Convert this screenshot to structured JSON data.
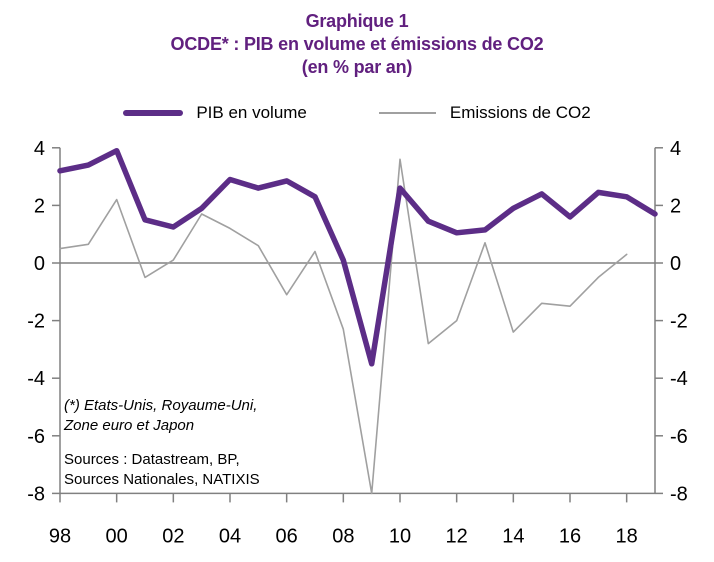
{
  "title": {
    "line1": "Graphique 1",
    "line2": "OCDE* : PIB en volume et émissions de CO2",
    "line3": "(en % par an)"
  },
  "legend": {
    "pib_label": "PIB en volume",
    "co2_label": "Emissions de CO2"
  },
  "annotation": {
    "footnote_line1": "(*) Etats-Unis, Royaume-Uni,",
    "footnote_line2": "Zone euro et Japon",
    "sources_line1": "Sources : Datastream, BP,",
    "sources_line2": "Sources Nationales, NATIXIS"
  },
  "colors": {
    "title": "#61207F",
    "pib_line": "#5C2D87",
    "co2_line": "#A0A0A0",
    "axis": "#808080",
    "text": "#000000"
  },
  "chart_data": {
    "type": "line",
    "x": [
      1998,
      1999,
      2000,
      2001,
      2002,
      2003,
      2004,
      2005,
      2006,
      2007,
      2008,
      2009,
      2010,
      2011,
      2012,
      2013,
      2014,
      2015,
      2016,
      2017,
      2018,
      2019
    ],
    "series": [
      {
        "name": "PIB en volume",
        "color": "#5C2D87",
        "stroke_width": 5.5,
        "values": [
          3.2,
          3.4,
          3.9,
          1.5,
          1.25,
          1.9,
          2.9,
          2.6,
          2.85,
          2.3,
          0.1,
          -3.5,
          2.6,
          1.45,
          1.05,
          1.15,
          1.9,
          2.4,
          1.6,
          2.45,
          2.3,
          1.7
        ]
      },
      {
        "name": "Emissions de CO2",
        "color": "#A0A0A0",
        "stroke_width": 1.6,
        "values": [
          0.5,
          0.65,
          2.2,
          -0.5,
          0.1,
          1.7,
          1.2,
          0.6,
          -1.1,
          0.4,
          -2.3,
          -8.0,
          3.6,
          -2.8,
          -2.0,
          0.7,
          -2.4,
          -1.4,
          -1.5,
          -0.5,
          0.3,
          null
        ]
      }
    ],
    "title": "OCDE* : PIB en volume et émissions de CO2 (en % par an)",
    "xlabel": "",
    "ylabel": "",
    "ylim": [
      -8,
      4
    ],
    "yticks": [
      4,
      2,
      0,
      -2,
      -4,
      -6,
      -8
    ],
    "xtick_years": [
      1998,
      2000,
      2002,
      2004,
      2006,
      2008,
      2010,
      2012,
      2014,
      2016,
      2018
    ],
    "xtick_labels": [
      "98",
      "00",
      "02",
      "04",
      "06",
      "08",
      "10",
      "12",
      "14",
      "16",
      "18"
    ],
    "grid": false,
    "zero_line": true,
    "legend_position": "top"
  }
}
